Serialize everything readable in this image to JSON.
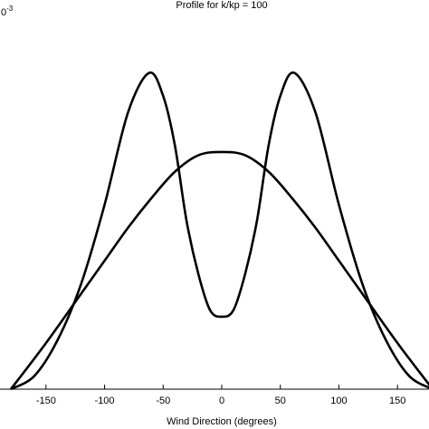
{
  "chart_data": {
    "type": "line",
    "title": "Profile for k/kp = 100",
    "xlabel": "Wind Direction (degrees)",
    "ylabel": "",
    "y_scale_base": "0",
    "y_scale_exponent": "-3",
    "xlim": [
      -180,
      180
    ],
    "ylim": [
      0,
      1
    ],
    "x_ticks": [
      -150,
      -100,
      -50,
      0,
      50,
      100,
      150
    ],
    "grid": false,
    "series": [
      {
        "values": [
          [
            -180,
            0.0
          ],
          [
            -150,
            0.14
          ],
          [
            -120,
            0.29
          ],
          [
            -100,
            0.39
          ],
          [
            -80,
            0.49
          ],
          [
            -60,
            0.58
          ],
          [
            -40,
            0.66
          ],
          [
            -20,
            0.71
          ],
          [
            0,
            0.72
          ],
          [
            20,
            0.71
          ],
          [
            40,
            0.66
          ],
          [
            60,
            0.58
          ],
          [
            80,
            0.49
          ],
          [
            100,
            0.39
          ],
          [
            120,
            0.29
          ],
          [
            150,
            0.14
          ],
          [
            180,
            0.0
          ]
        ]
      },
      {
        "values": [
          [
            -180,
            0.0
          ],
          [
            -160,
            0.04
          ],
          [
            -140,
            0.15
          ],
          [
            -120,
            0.32
          ],
          [
            -100,
            0.56
          ],
          [
            -80,
            0.84
          ],
          [
            -62,
            0.96
          ],
          [
            -50,
            0.89
          ],
          [
            -40,
            0.74
          ],
          [
            -30,
            0.51
          ],
          [
            -20,
            0.35
          ],
          [
            -10,
            0.24
          ],
          [
            0,
            0.22
          ],
          [
            10,
            0.24
          ],
          [
            20,
            0.35
          ],
          [
            30,
            0.51
          ],
          [
            40,
            0.74
          ],
          [
            50,
            0.89
          ],
          [
            62,
            0.96
          ],
          [
            80,
            0.84
          ],
          [
            100,
            0.56
          ],
          [
            120,
            0.32
          ],
          [
            140,
            0.15
          ],
          [
            160,
            0.04
          ],
          [
            180,
            0.0
          ]
        ]
      }
    ]
  }
}
